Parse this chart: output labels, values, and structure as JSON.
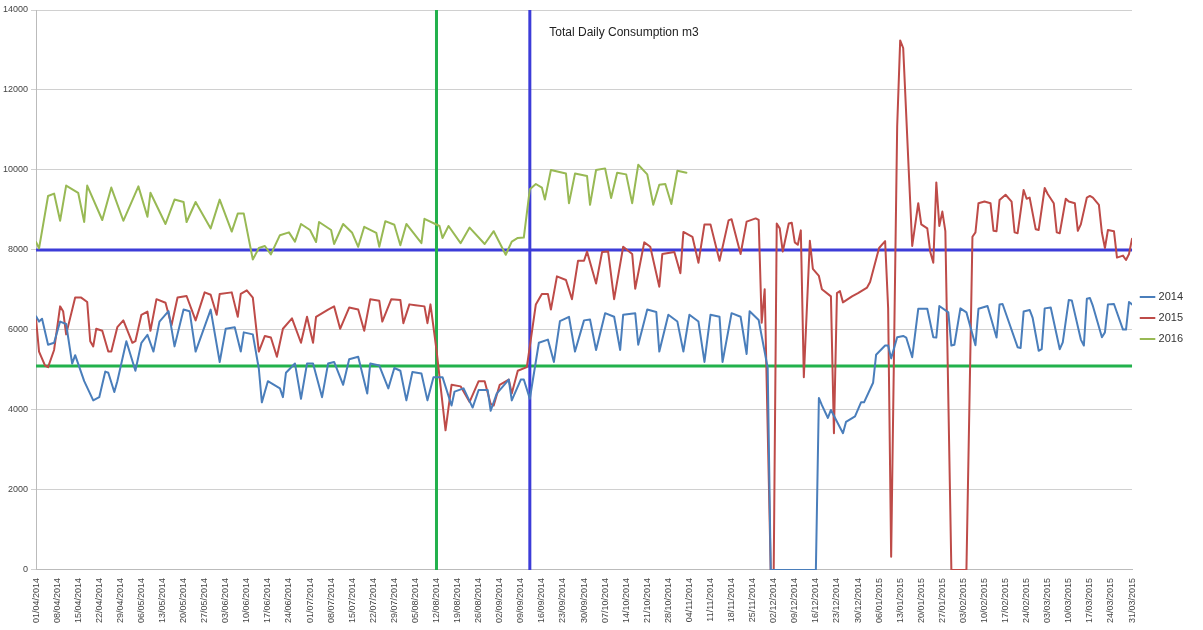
{
  "chart_data": {
    "type": "line",
    "title": "Total Daily Consumption m3",
    "xlim": [
      "2014-04-01",
      "2015-03-31"
    ],
    "xticks": [
      {
        "value": "2014-04-01",
        "label": "01/04/2014"
      },
      {
        "value": "2014-04-08",
        "label": "08/04/2014"
      },
      {
        "value": "2014-04-15",
        "label": "15/04/2014"
      },
      {
        "value": "2014-04-22",
        "label": "22/04/2014"
      },
      {
        "value": "2014-04-29",
        "label": "29/04/2014"
      },
      {
        "value": "2014-05-06",
        "label": "06/05/2014"
      },
      {
        "value": "2014-05-13",
        "label": "13/05/2014"
      },
      {
        "value": "2014-05-20",
        "label": "20/05/2014"
      },
      {
        "value": "2014-05-27",
        "label": "27/05/2014"
      },
      {
        "value": "2014-06-03",
        "label": "03/06/2014"
      },
      {
        "value": "2014-06-10",
        "label": "10/06/2014"
      },
      {
        "value": "2014-06-17",
        "label": "17/06/2014"
      },
      {
        "value": "2014-06-24",
        "label": "24/06/2014"
      },
      {
        "value": "2014-07-01",
        "label": "01/07/2014"
      },
      {
        "value": "2014-07-08",
        "label": "08/07/2014"
      },
      {
        "value": "2014-07-15",
        "label": "15/07/2014"
      },
      {
        "value": "2014-07-22",
        "label": "22/07/2014"
      },
      {
        "value": "2014-07-29",
        "label": "29/07/2014"
      },
      {
        "value": "2014-08-05",
        "label": "05/08/2014"
      },
      {
        "value": "2014-08-12",
        "label": "12/08/2014"
      },
      {
        "value": "2014-08-19",
        "label": "19/08/2014"
      },
      {
        "value": "2014-08-26",
        "label": "26/08/2014"
      },
      {
        "value": "2014-09-02",
        "label": "02/09/2014"
      },
      {
        "value": "2014-09-09",
        "label": "09/09/2014"
      },
      {
        "value": "2014-09-16",
        "label": "16/09/2014"
      },
      {
        "value": "2014-09-23",
        "label": "23/09/2014"
      },
      {
        "value": "2014-09-30",
        "label": "30/09/2014"
      },
      {
        "value": "2014-10-07",
        "label": "07/10/2014"
      },
      {
        "value": "2014-10-14",
        "label": "14/10/2014"
      },
      {
        "value": "2014-10-21",
        "label": "21/10/2014"
      },
      {
        "value": "2014-10-28",
        "label": "28/10/2014"
      },
      {
        "value": "2014-11-04",
        "label": "04/11/2014"
      },
      {
        "value": "2014-11-11",
        "label": "11/11/2014"
      },
      {
        "value": "2014-11-18",
        "label": "18/11/2014"
      },
      {
        "value": "2014-11-25",
        "label": "25/11/2014"
      },
      {
        "value": "2014-12-02",
        "label": "02/12/2014"
      },
      {
        "value": "2014-12-09",
        "label": "09/12/2014"
      },
      {
        "value": "2014-12-16",
        "label": "16/12/2014"
      },
      {
        "value": "2014-12-23",
        "label": "23/12/2014"
      },
      {
        "value": "2014-12-30",
        "label": "30/12/2014"
      },
      {
        "value": "2015-01-06",
        "label": "06/01/2015"
      },
      {
        "value": "2015-01-13",
        "label": "13/01/2015"
      },
      {
        "value": "2015-01-20",
        "label": "20/01/2015"
      },
      {
        "value": "2015-01-27",
        "label": "27/01/2015"
      },
      {
        "value": "2015-02-03",
        "label": "03/02/2015"
      },
      {
        "value": "2015-02-10",
        "label": "10/02/2015"
      },
      {
        "value": "2015-02-17",
        "label": "17/02/2015"
      },
      {
        "value": "2015-02-24",
        "label": "24/02/2015"
      },
      {
        "value": "2015-03-03",
        "label": "03/03/2015"
      },
      {
        "value": "2015-03-10",
        "label": "10/03/2015"
      },
      {
        "value": "2015-03-17",
        "label": "17/03/2015"
      },
      {
        "value": "2015-03-24",
        "label": "24/03/2015"
      },
      {
        "value": "2015-03-31",
        "label": "31/03/2015"
      }
    ],
    "ylim": [
      0,
      14000
    ],
    "yticks": [
      0,
      2000,
      4000,
      6000,
      8000,
      10000,
      12000,
      14000
    ],
    "grid": "y",
    "legend": "right",
    "marker": "none",
    "line_style": "solid",
    "ref_lines": [
      {
        "axis": "y",
        "value": 8000,
        "color": "#3c3cd8"
      },
      {
        "axis": "y",
        "value": 5100,
        "color": "#22b14c"
      },
      {
        "axis": "x",
        "value": "2014-08-12",
        "color": "#22b14c"
      },
      {
        "axis": "x",
        "value": "2014-09-12",
        "color": "#3c3cd8"
      }
    ],
    "series": [
      {
        "name": "2014",
        "color": "#4a7ebb",
        "x": [
          "2014-04-01",
          "2014-04-02",
          "2014-04-03",
          "2014-04-05",
          "2014-04-07",
          "2014-04-09",
          "2014-04-11",
          "2014-04-13",
          "2014-04-14",
          "2014-04-17",
          "2014-04-20",
          "2014-04-22",
          "2014-04-24",
          "2014-04-25",
          "2014-04-27",
          "2014-04-28",
          "2014-05-01",
          "2014-05-04",
          "2014-05-06",
          "2014-05-08",
          "2014-05-10",
          "2014-05-12",
          "2014-05-15",
          "2014-05-17",
          "2014-05-20",
          "2014-05-22",
          "2014-05-24",
          "2014-05-29",
          "2014-06-01",
          "2014-06-03",
          "2014-06-06",
          "2014-06-08",
          "2014-06-09",
          "2014-06-12",
          "2014-06-14",
          "2014-06-15",
          "2014-06-17",
          "2014-06-21",
          "2014-06-22",
          "2014-06-23",
          "2014-06-26",
          "2014-06-28",
          "2014-06-30",
          "2014-07-02",
          "2014-07-05",
          "2014-07-07",
          "2014-07-09",
          "2014-07-12",
          "2014-07-14",
          "2014-07-17",
          "2014-07-20",
          "2014-07-21",
          "2014-07-24",
          "2014-07-27",
          "2014-07-29",
          "2014-07-31",
          "2014-08-02",
          "2014-08-04",
          "2014-08-07",
          "2014-08-09",
          "2014-08-11",
          "2014-08-14",
          "2014-08-17",
          "2014-08-18",
          "2014-08-21",
          "2014-08-24",
          "2014-08-26",
          "2014-08-29",
          "2014-08-30",
          "2014-09-01",
          "2014-09-05",
          "2014-09-06",
          "2014-09-09",
          "2014-09-10",
          "2014-09-12",
          "2014-09-15",
          "2014-09-18",
          "2014-09-20",
          "2014-09-22",
          "2014-09-25",
          "2014-09-27",
          "2014-09-30",
          "2014-10-02",
          "2014-10-04",
          "2014-10-07",
          "2014-10-10",
          "2014-10-12",
          "2014-10-13",
          "2014-10-17",
          "2014-10-18",
          "2014-10-21",
          "2014-10-24",
          "2014-10-25",
          "2014-10-28",
          "2014-10-31",
          "2014-11-02",
          "2014-11-04",
          "2014-11-07",
          "2014-11-09",
          "2014-11-11",
          "2014-11-14",
          "2014-11-15",
          "2014-11-18",
          "2014-11-21",
          "2014-11-23",
          "2014-11-24",
          "2014-11-27",
          "2014-11-30",
          "2014-12-01",
          "2014-12-16",
          "2014-12-17",
          "2014-12-18",
          "2014-12-20",
          "2014-12-21",
          "2014-12-25",
          "2014-12-26",
          "2014-12-29",
          "2014-12-31",
          "2015-01-01",
          "2015-01-04",
          "2015-01-05",
          "2015-01-08",
          "2015-01-09",
          "2015-01-10",
          "2015-01-12",
          "2015-01-14",
          "2015-01-15",
          "2015-01-17",
          "2015-01-19",
          "2015-01-22",
          "2015-01-24",
          "2015-01-25",
          "2015-01-26",
          "2015-01-29",
          "2015-01-30",
          "2015-01-31",
          "2015-02-02",
          "2015-02-04",
          "2015-02-07",
          "2015-02-08",
          "2015-02-11",
          "2015-02-14",
          "2015-02-15",
          "2015-02-16",
          "2015-02-21",
          "2015-02-22",
          "2015-02-23",
          "2015-02-25",
          "2015-02-26",
          "2015-02-28",
          "2015-03-01",
          "2015-03-02",
          "2015-03-04",
          "2015-03-07",
          "2015-03-08",
          "2015-03-10",
          "2015-03-11",
          "2015-03-14",
          "2015-03-15",
          "2015-03-16",
          "2015-03-17",
          "2015-03-18",
          "2015-03-21",
          "2015-03-22",
          "2015-03-23",
          "2015-03-25",
          "2015-03-28",
          "2015-03-29",
          "2015-03-30",
          "2015-03-31"
        ],
        "values": [
          6340,
          6210,
          6280,
          5630,
          5680,
          6210,
          6150,
          5160,
          5370,
          4720,
          4240,
          4320,
          4960,
          4930,
          4450,
          4720,
          5720,
          4980,
          5680,
          5880,
          5460,
          6210,
          6470,
          5590,
          6510,
          6470,
          5460,
          6510,
          5200,
          6030,
          6070,
          5460,
          5940,
          5890,
          5030,
          4190,
          4720,
          4540,
          4320,
          4930,
          5160,
          4280,
          5160,
          5160,
          4320,
          5160,
          5200,
          4630,
          5270,
          5330,
          4410,
          5160,
          5110,
          4540,
          5050,
          4980,
          4240,
          4950,
          4910,
          4240,
          4820,
          4820,
          4110,
          4460,
          4540,
          4060,
          4500,
          4500,
          3980,
          4410,
          4760,
          4240,
          4760,
          4760,
          4280,
          5680,
          5760,
          5200,
          6220,
          6330,
          5460,
          6240,
          6260,
          5500,
          6420,
          6330,
          5500,
          6380,
          6420,
          5630,
          6510,
          6450,
          5460,
          6380,
          6210,
          5460,
          6380,
          6210,
          5200,
          6380,
          6330,
          5200,
          6420,
          6330,
          5400,
          6470,
          6250,
          5050,
          0,
          0,
          4300,
          4120,
          3800,
          4000,
          3420,
          3700,
          3840,
          4190,
          4190,
          4680,
          5380,
          5610,
          5610,
          5290,
          5820,
          5850,
          5810,
          5320,
          6530,
          6530,
          5820,
          5810,
          6600,
          6440,
          5610,
          5630,
          6540,
          6440,
          5620,
          6530,
          6600,
          5810,
          6640,
          6650,
          5570,
          5550,
          6460,
          6500,
          6300,
          5480,
          5520,
          6540,
          6560,
          5520,
          5690,
          6750,
          6740,
          5760,
          5610,
          6780,
          6800,
          6600,
          5820,
          5940,
          6640,
          6650,
          6010,
          6010,
          6700,
          6640
        ]
      },
      {
        "name": "2015",
        "color": "#be4b48",
        "x": [
          "2014-04-01",
          "2014-04-02",
          "2014-04-04",
          "2014-04-05",
          "2014-04-07",
          "2014-04-09",
          "2014-04-10",
          "2014-04-11",
          "2014-04-14",
          "2014-04-16",
          "2014-04-18",
          "2014-04-19",
          "2014-04-20",
          "2014-04-21",
          "2014-04-23",
          "2014-04-25",
          "2014-04-26",
          "2014-04-28",
          "2014-04-30",
          "2014-05-03",
          "2014-05-04",
          "2014-05-06",
          "2014-05-08",
          "2014-05-09",
          "2014-05-11",
          "2014-05-14",
          "2014-05-16",
          "2014-05-18",
          "2014-05-21",
          "2014-05-24",
          "2014-05-27",
          "2014-05-29",
          "2014-05-31",
          "2014-06-01",
          "2014-06-05",
          "2014-06-07",
          "2014-06-08",
          "2014-06-10",
          "2014-06-12",
          "2014-06-14",
          "2014-06-16",
          "2014-06-18",
          "2014-06-20",
          "2014-06-22",
          "2014-06-25",
          "2014-06-28",
          "2014-06-30",
          "2014-07-02",
          "2014-07-03",
          "2014-07-07",
          "2014-07-09",
          "2014-07-11",
          "2014-07-14",
          "2014-07-17",
          "2014-07-19",
          "2014-07-21",
          "2014-07-24",
          "2014-07-25",
          "2014-07-28",
          "2014-07-31",
          "2014-08-01",
          "2014-08-03",
          "2014-08-05",
          "2014-08-08",
          "2014-08-09",
          "2014-08-10",
          "2014-08-12",
          "2014-08-15",
          "2014-08-17",
          "2014-08-20",
          "2014-08-23",
          "2014-08-26",
          "2014-08-28",
          "2014-08-30",
          "2014-08-31",
          "2014-09-02",
          "2014-09-05",
          "2014-09-06",
          "2014-09-08",
          "2014-09-11",
          "2014-09-12",
          "2014-09-14",
          "2014-09-16",
          "2014-09-18",
          "2014-09-19",
          "2014-09-21",
          "2014-09-24",
          "2014-09-26",
          "2014-09-28",
          "2014-09-30",
          "2014-10-01",
          "2014-10-04",
          "2014-10-06",
          "2014-10-08",
          "2014-10-10",
          "2014-10-13",
          "2014-10-16",
          "2014-10-17",
          "2014-10-20",
          "2014-10-22",
          "2014-10-25",
          "2014-10-26",
          "2014-10-30",
          "2014-11-01",
          "2014-11-02",
          "2014-11-05",
          "2014-11-07",
          "2014-11-09",
          "2014-11-11",
          "2014-11-14",
          "2014-11-17",
          "2014-11-18",
          "2014-11-21",
          "2014-11-23",
          "2014-11-26",
          "2014-11-27",
          "2014-11-28",
          "2014-11-29",
          "2014-12-01",
          "2014-12-02",
          "2014-12-03",
          "2014-12-04",
          "2014-12-05",
          "2014-12-07",
          "2014-12-08",
          "2014-12-09",
          "2014-12-10",
          "2014-12-11",
          "2014-12-12",
          "2014-12-14",
          "2014-12-15",
          "2014-12-17",
          "2014-12-18",
          "2014-12-21",
          "2014-12-22",
          "2014-12-23",
          "2014-12-24",
          "2014-12-25",
          "2014-12-28",
          "2014-12-30",
          "2015-01-02",
          "2015-01-03",
          "2015-01-05",
          "2015-01-06",
          "2015-01-08",
          "2015-01-09",
          "2015-01-10",
          "2015-01-12",
          "2015-01-13",
          "2015-01-14",
          "2015-01-16",
          "2015-01-17",
          "2015-01-19",
          "2015-01-20",
          "2015-01-22",
          "2015-01-23",
          "2015-01-24",
          "2015-01-25",
          "2015-01-26",
          "2015-01-27",
          "2015-01-28",
          "2015-01-30",
          "2015-02-04",
          "2015-02-06",
          "2015-02-07",
          "2015-02-08",
          "2015-02-10",
          "2015-02-12",
          "2015-02-13",
          "2015-02-14",
          "2015-02-15",
          "2015-02-17",
          "2015-02-19",
          "2015-02-20",
          "2015-02-21",
          "2015-02-23",
          "2015-02-24",
          "2015-02-25",
          "2015-02-27",
          "2015-02-28",
          "2015-03-02",
          "2015-03-03",
          "2015-03-05",
          "2015-03-06",
          "2015-03-07",
          "2015-03-09",
          "2015-03-10",
          "2015-03-12",
          "2015-03-13",
          "2015-03-14",
          "2015-03-16",
          "2015-03-17",
          "2015-03-18",
          "2015-03-20",
          "2015-03-21",
          "2015-03-22",
          "2015-03-23",
          "2015-03-25",
          "2015-03-26",
          "2015-03-28",
          "2015-03-29",
          "2015-03-30",
          "2015-03-31"
        ],
        "values": [
          6280,
          5460,
          5110,
          5070,
          5500,
          6590,
          6470,
          5890,
          6810,
          6810,
          6700,
          5720,
          5590,
          6030,
          5980,
          5460,
          5460,
          6070,
          6240,
          5680,
          5720,
          6380,
          6460,
          5980,
          6770,
          6680,
          6120,
          6810,
          6850,
          6240,
          6940,
          6880,
          6380,
          6900,
          6940,
          6330,
          6900,
          6990,
          6810,
          5460,
          5850,
          5810,
          5330,
          6030,
          6290,
          5680,
          6330,
          5680,
          6330,
          6510,
          6590,
          6030,
          6560,
          6510,
          5980,
          6770,
          6730,
          6210,
          6770,
          6750,
          6170,
          6640,
          6620,
          6590,
          6170,
          6640,
          5500,
          3490,
          4630,
          4590,
          4200,
          4720,
          4720,
          4150,
          4110,
          4630,
          4760,
          4410,
          4980,
          5070,
          5590,
          6640,
          6900,
          6900,
          6510,
          7340,
          7250,
          6770,
          7730,
          7730,
          7960,
          7160,
          7950,
          7960,
          6770,
          8080,
          7900,
          7030,
          8190,
          8080,
          7080,
          7900,
          7950,
          7420,
          8450,
          8330,
          7680,
          8640,
          8640,
          7730,
          8740,
          8770,
          7900,
          8710,
          8790,
          8750,
          6180,
          7020,
          0,
          0,
          8660,
          8540,
          7960,
          8660,
          8680,
          8190,
          8130,
          8490,
          4820,
          8230,
          7530,
          7350,
          7020,
          6840,
          3420,
          6920,
          6970,
          6690,
          6840,
          6920,
          7060,
          7200,
          7770,
          8050,
          8220,
          6550,
          330,
          11090,
          13240,
          13050,
          9730,
          8100,
          9170,
          8640,
          8540,
          7950,
          7680,
          9690,
          8600,
          8960,
          8470,
          0,
          0,
          8330,
          8440,
          9170,
          9210,
          9170,
          8480,
          8470,
          9250,
          9380,
          9210,
          8440,
          8420,
          9500,
          9280,
          9310,
          8520,
          8500,
          9550,
          9400,
          9170,
          8440,
          8420,
          9280,
          9210,
          9170,
          8480,
          8640,
          9310,
          9350,
          9310,
          9130,
          8430,
          8050,
          8500,
          8470,
          7810,
          7860,
          7750,
          7900,
          8280
        ]
      },
      {
        "name": "2016",
        "color": "#98b954",
        "x": [
          "2014-04-01",
          "2014-04-02",
          "2014-04-05",
          "2014-04-07",
          "2014-04-09",
          "2014-04-11",
          "2014-04-15",
          "2014-04-17",
          "2014-04-18",
          "2014-04-23",
          "2014-04-26",
          "2014-04-30",
          "2014-05-05",
          "2014-05-08",
          "2014-05-09",
          "2014-05-14",
          "2014-05-17",
          "2014-05-20",
          "2014-05-21",
          "2014-05-24",
          "2014-05-29",
          "2014-06-01",
          "2014-06-05",
          "2014-06-07",
          "2014-06-09",
          "2014-06-12",
          "2014-06-14",
          "2014-06-16",
          "2014-06-18",
          "2014-06-21",
          "2014-06-24",
          "2014-06-26",
          "2014-06-28",
          "2014-07-01",
          "2014-07-03",
          "2014-07-04",
          "2014-07-08",
          "2014-07-09",
          "2014-07-12",
          "2014-07-15",
          "2014-07-17",
          "2014-07-19",
          "2014-07-23",
          "2014-07-24",
          "2014-07-26",
          "2014-07-29",
          "2014-07-31",
          "2014-08-02",
          "2014-08-07",
          "2014-08-08",
          "2014-08-13",
          "2014-08-14",
          "2014-08-16",
          "2014-08-20",
          "2014-08-23",
          "2014-08-28",
          "2014-08-31",
          "2014-09-04",
          "2014-09-06",
          "2014-09-08",
          "2014-09-10",
          "2014-09-12",
          "2014-09-14",
          "2014-09-16",
          "2014-09-17",
          "2014-09-19",
          "2014-09-24",
          "2014-09-25",
          "2014-09-27",
          "2014-10-01",
          "2014-10-02",
          "2014-10-04",
          "2014-10-07",
          "2014-10-09",
          "2014-10-11",
          "2014-10-14",
          "2014-10-16",
          "2014-10-18",
          "2014-10-21",
          "2014-10-23",
          "2014-10-25",
          "2014-10-27",
          "2014-10-29",
          "2014-10-31",
          "2014-11-03"
        ],
        "values": [
          8200,
          8040,
          9350,
          9410,
          8730,
          9610,
          9430,
          8700,
          9610,
          8750,
          9560,
          8730,
          9590,
          8830,
          9430,
          8650,
          9260,
          9200,
          8700,
          9200,
          8540,
          9260,
          8460,
          8910,
          8910,
          7760,
          8050,
          8100,
          7890,
          8370,
          8440,
          8210,
          8650,
          8500,
          8200,
          8700,
          8500,
          8150,
          8650,
          8430,
          8080,
          8580,
          8430,
          8080,
          8720,
          8630,
          8120,
          8650,
          8170,
          8780,
          8600,
          8300,
          8600,
          8170,
          8560,
          8150,
          8470,
          7880,
          8210,
          8300,
          8310,
          9520,
          9650,
          9560,
          9260,
          10000,
          9910,
          9170,
          9910,
          9850,
          9130,
          10000,
          10040,
          9300,
          9930,
          9890,
          9170,
          10130,
          9890,
          9130,
          9630,
          9650,
          9150,
          9980,
          9930
        ]
      }
    ]
  }
}
